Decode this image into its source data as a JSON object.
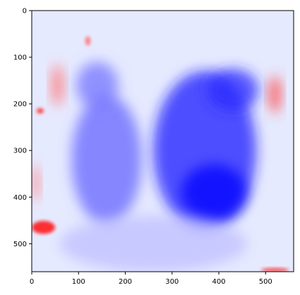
{
  "chart_data": {
    "type": "heatmap",
    "title": "",
    "xlabel": "",
    "ylabel": "",
    "xlim": [
      0,
      560
    ],
    "ylim": [
      560,
      0
    ],
    "grid": false,
    "legend": "none",
    "colormap": "bwr",
    "x_ticks": [
      "0",
      "100",
      "200",
      "300",
      "400",
      "500"
    ],
    "y_ticks": [
      "0",
      "100",
      "200",
      "300",
      "400",
      "500"
    ],
    "x_tick_values": [
      0,
      100,
      200,
      300,
      400,
      500
    ],
    "y_tick_values": [
      0,
      100,
      200,
      300,
      400,
      500
    ],
    "colors": {
      "background": "#e6eaff",
      "low": "#0000ff",
      "mid": "#ffffff",
      "high": "#ff0000",
      "axis": "#000000"
    },
    "regions": [
      {
        "name": "left hemisphere dark region",
        "cx": 160,
        "cy": 320,
        "rx": 75,
        "ry": 140,
        "value": -0.6
      },
      {
        "name": "right hemisphere dark region",
        "cx": 370,
        "cy": 300,
        "rx": 110,
        "ry": 170,
        "value": -0.9
      },
      {
        "name": "right lower core",
        "cx": 390,
        "cy": 390,
        "rx": 70,
        "ry": 60,
        "value": -1.0
      },
      {
        "name": "upper right patch",
        "cx": 430,
        "cy": 170,
        "rx": 55,
        "ry": 45,
        "value": -0.85
      },
      {
        "name": "upper left patch",
        "cx": 140,
        "cy": 160,
        "rx": 45,
        "ry": 50,
        "value": -0.55
      },
      {
        "name": "lower fade",
        "cx": 260,
        "cy": 500,
        "rx": 200,
        "ry": 60,
        "value": -0.25
      },
      {
        "name": "lower left red streak",
        "cx": 25,
        "cy": 465,
        "rx": 25,
        "ry": 14,
        "value": 0.95
      },
      {
        "name": "left edge red patch",
        "cx": 8,
        "cy": 370,
        "rx": 8,
        "ry": 40,
        "value": 0.5
      },
      {
        "name": "upper right red edge",
        "cx": 520,
        "cy": 180,
        "rx": 12,
        "ry": 40,
        "value": 0.75
      },
      {
        "name": "upper left red edge",
        "cx": 55,
        "cy": 160,
        "rx": 12,
        "ry": 45,
        "value": 0.55
      },
      {
        "name": "left mid red spot",
        "cx": 18,
        "cy": 215,
        "rx": 8,
        "ry": 6,
        "value": 0.8
      },
      {
        "name": "bottom right red spot",
        "cx": 520,
        "cy": 556,
        "rx": 30,
        "ry": 4,
        "value": 0.8
      },
      {
        "name": "top left red spot",
        "cx": 120,
        "cy": 65,
        "rx": 6,
        "ry": 10,
        "value": 0.55
      }
    ]
  }
}
